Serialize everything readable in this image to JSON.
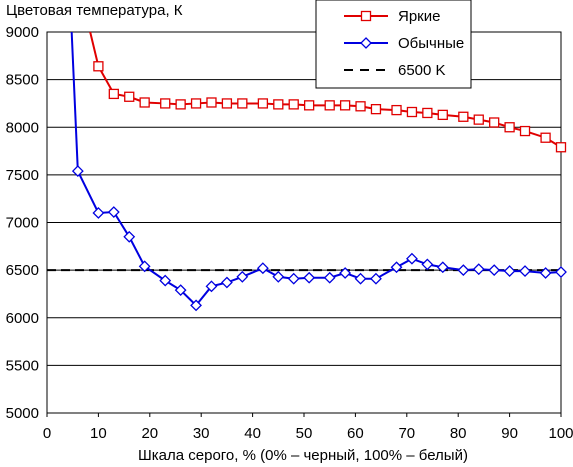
{
  "chart_data": {
    "type": "line",
    "title": "Цветовая температура, К",
    "xlabel": "Шкала серого, % (0% – черный, 100% – белый)",
    "ylabel": "",
    "xlim": [
      0,
      100
    ],
    "ylim": [
      5000,
      9000
    ],
    "x_ticks": [
      0,
      10,
      20,
      30,
      40,
      50,
      60,
      70,
      80,
      90,
      100
    ],
    "y_ticks": [
      5000,
      5500,
      6000,
      6500,
      7000,
      7500,
      8000,
      8500,
      9000
    ],
    "grid": "horizontal",
    "legend_position": "top-right",
    "series": [
      {
        "name": "Яркие",
        "color": "#e00000",
        "marker": "square",
        "x": [
          10,
          13,
          16,
          19,
          23,
          26,
          29,
          32,
          35,
          38,
          42,
          45,
          48,
          51,
          55,
          58,
          61,
          64,
          68,
          71,
          74,
          77,
          81,
          84,
          87,
          90,
          93,
          97,
          100
        ],
        "values": [
          8640,
          8350,
          8320,
          8260,
          8250,
          8240,
          8250,
          8260,
          8250,
          8250,
          8250,
          8240,
          8240,
          8230,
          8230,
          8230,
          8220,
          8190,
          8180,
          8160,
          8150,
          8130,
          8110,
          8080,
          8050,
          8000,
          7960,
          7890,
          7790
        ],
        "curve_start": {
          "x": 8.4,
          "y": 9000
        }
      },
      {
        "name": "Обычные",
        "color": "#0000e0",
        "marker": "diamond",
        "x": [
          6,
          10,
          13,
          16,
          19,
          23,
          26,
          29,
          32,
          35,
          38,
          42,
          45,
          48,
          51,
          55,
          58,
          61,
          64,
          68,
          71,
          74,
          77,
          81,
          84,
          87,
          90,
          93,
          97,
          100
        ],
        "values": [
          7540,
          7100,
          7110,
          6850,
          6540,
          6390,
          6290,
          6130,
          6330,
          6370,
          6430,
          6520,
          6430,
          6410,
          6420,
          6420,
          6470,
          6410,
          6410,
          6530,
          6620,
          6560,
          6530,
          6500,
          6510,
          6500,
          6490,
          6490,
          6470,
          6480
        ],
        "curve_start": {
          "x": 4.8,
          "y": 9000
        }
      }
    ],
    "reference_line": {
      "name": "6500 K",
      "value": 6500,
      "color": "#000000",
      "style": "dashed"
    }
  }
}
